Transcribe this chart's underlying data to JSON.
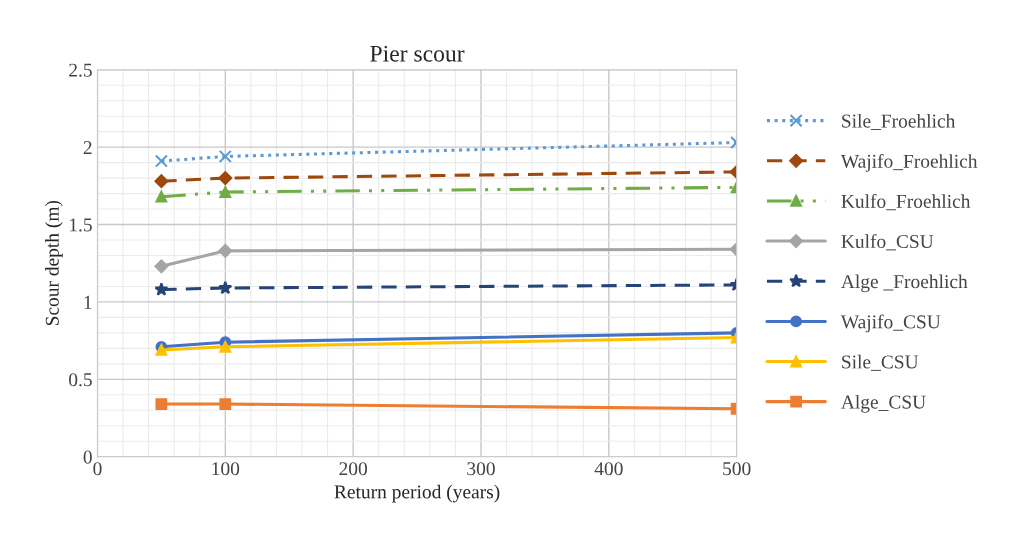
{
  "chart_data": {
    "type": "line",
    "title": "Pier scour",
    "xlabel": "Return period (years)",
    "ylabel": "Scour depth (m)",
    "x": [
      50,
      100,
      500
    ],
    "series": [
      {
        "name": "Sile_Froehlich",
        "color": "#5b9bd5",
        "marker": "cross",
        "line_style": "dotted",
        "values": [
          1.91,
          1.94,
          2.03
        ]
      },
      {
        "name": "Wajifo_Froehlich",
        "color": "#9e480e",
        "marker": "diamond",
        "line_style": "dashed",
        "values": [
          1.78,
          1.8,
          1.84
        ]
      },
      {
        "name": "Kulfo_Froehlich",
        "color": "#70ad47",
        "marker": "triangle",
        "line_style": "dashdot",
        "values": [
          1.68,
          1.71,
          1.74
        ]
      },
      {
        "name": "Kulfo_CSU",
        "color": "#a5a5a5",
        "marker": "diamond",
        "line_style": "solid",
        "values": [
          1.23,
          1.33,
          1.34
        ]
      },
      {
        "name": "Alge _Froehlich",
        "color": "#264478",
        "marker": "star",
        "line_style": "dashed",
        "values": [
          1.08,
          1.09,
          1.11
        ]
      },
      {
        "name": "Wajifo_CSU",
        "color": "#4472c4",
        "marker": "circle",
        "line_style": "solid",
        "values": [
          0.71,
          0.74,
          0.8
        ]
      },
      {
        "name": "Sile_CSU",
        "color": "#ffc000",
        "marker": "triangle",
        "line_style": "solid",
        "values": [
          0.69,
          0.71,
          0.77
        ]
      },
      {
        "name": "Alge_CSU",
        "color": "#ed7d31",
        "marker": "square",
        "line_style": "solid",
        "values": [
          0.34,
          0.34,
          0.31
        ]
      }
    ],
    "xlim": [
      0,
      500
    ],
    "xticks": [
      0,
      100,
      200,
      300,
      400,
      500
    ],
    "ylim": [
      0,
      2.5
    ],
    "yticks": [
      0,
      0.5,
      1,
      1.5,
      2,
      2.5
    ],
    "grid": true,
    "legend": "right"
  }
}
